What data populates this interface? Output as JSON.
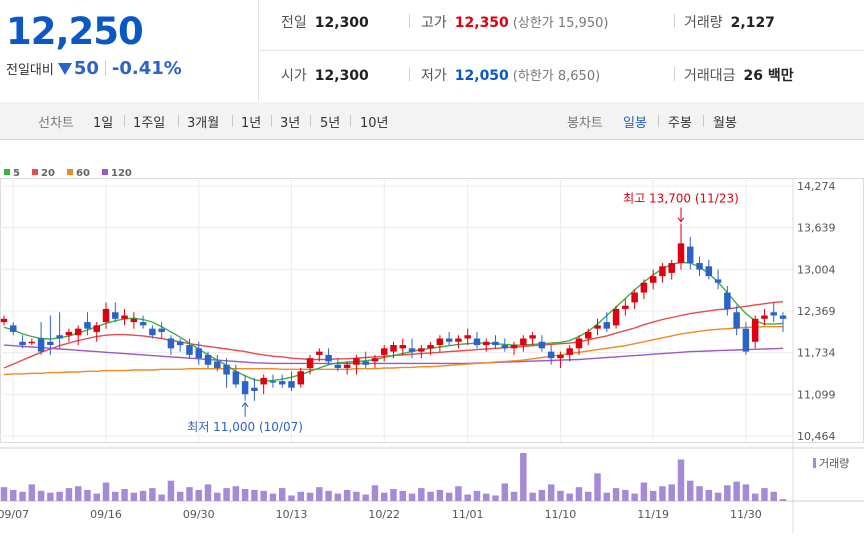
{
  "header": {
    "price": "12,250",
    "change_label": "전일대비",
    "change_value": "50",
    "change_pct": "-0.41%",
    "prev_close_label": "전일",
    "prev_close": "12,300",
    "high_label": "고가",
    "high": "12,350",
    "upper_limit": "(상한가 15,950)",
    "volume_label": "거래량",
    "volume": "2,127",
    "open_label": "시가",
    "open": "12,300",
    "low_label": "저가",
    "low": "12,050",
    "lower_limit": "(하한가 8,650)",
    "amount_label": "거래대금",
    "amount": "26 백만"
  },
  "period_tabs": {
    "label": "선차트",
    "items": [
      "1일",
      "1주일",
      "3개월",
      "1년",
      "3년",
      "5년",
      "10년"
    ]
  },
  "candle_tabs": {
    "label": "봉차트",
    "items": [
      "일봉",
      "주봉",
      "월봉"
    ],
    "active": "일봉"
  },
  "colors": {
    "up": "#e0000f",
    "down": "#2c63c9",
    "ma5": "#3cb043",
    "ma20": "#e74b4b",
    "ma60": "#f08a24",
    "ma120": "#9b59c7",
    "volume": "#a58bd6"
  },
  "chart_data": {
    "type": "candlestick",
    "legend": [
      {
        "label": "5",
        "color": "#3cb043"
      },
      {
        "label": "20",
        "color": "#e74b4b"
      },
      {
        "label": "60",
        "color": "#f08a24"
      },
      {
        "label": "120",
        "color": "#9b59c7"
      }
    ],
    "y_ticks": [
      "14,274",
      "13,639",
      "13,004",
      "12,369",
      "11,734",
      "11,099",
      "10,464"
    ],
    "ylim": [
      10464,
      14274
    ],
    "x_tick_labels": [
      "09/07",
      "09/16",
      "09/30",
      "10/13",
      "10/22",
      "11/01",
      "11/10",
      "11/19",
      "11/30"
    ],
    "x_tick_index": [
      1,
      11,
      21,
      31,
      41,
      50,
      60,
      70,
      80
    ],
    "annotation_high": "최고 13,700 (11/23)",
    "annotation_low": "최저 11,000 (10/07)",
    "high_index": 73,
    "low_index": 26,
    "volume_label": "거래량",
    "candles": [
      [
        12200,
        12300,
        12150,
        12250
      ],
      [
        12150,
        12200,
        12000,
        12050
      ],
      [
        11900,
        12000,
        11800,
        11850
      ],
      [
        11900,
        11950,
        11850,
        11900
      ],
      [
        11950,
        12200,
        11700,
        11750
      ],
      [
        11900,
        12300,
        11700,
        11850
      ],
      [
        12000,
        12350,
        11800,
        11950
      ],
      [
        12000,
        12100,
        11900,
        12050
      ],
      [
        12000,
        12150,
        11850,
        12100
      ],
      [
        12200,
        12350,
        12000,
        12100
      ],
      [
        12050,
        12200,
        11900,
        12150
      ],
      [
        12200,
        12500,
        12100,
        12400
      ],
      [
        12350,
        12500,
        12200,
        12250
      ],
      [
        12250,
        12400,
        12150,
        12300
      ],
      [
        12200,
        12350,
        12100,
        12250
      ],
      [
        12200,
        12300,
        12100,
        12150
      ],
      [
        12100,
        12150,
        11950,
        12000
      ],
      [
        12100,
        12200,
        11950,
        12050
      ],
      [
        11950,
        12000,
        11700,
        11800
      ],
      [
        11900,
        11950,
        11750,
        11850
      ],
      [
        11850,
        11950,
        11650,
        11700
      ],
      [
        11800,
        11900,
        11550,
        11650
      ],
      [
        11700,
        11750,
        11500,
        11550
      ],
      [
        11600,
        11700,
        11450,
        11500
      ],
      [
        11550,
        11650,
        11200,
        11400
      ],
      [
        11450,
        11550,
        11200,
        11250
      ],
      [
        11300,
        11400,
        11000,
        11100
      ],
      [
        11200,
        11350,
        11000,
        11150
      ],
      [
        11250,
        11400,
        11100,
        11350
      ],
      [
        11300,
        11400,
        11200,
        11280
      ],
      [
        11300,
        11400,
        11200,
        11250
      ],
      [
        11300,
        11450,
        11150,
        11200
      ],
      [
        11250,
        11500,
        11200,
        11450
      ],
      [
        11500,
        11700,
        11400,
        11650
      ],
      [
        11700,
        11800,
        11600,
        11750
      ],
      [
        11700,
        11800,
        11550,
        11600
      ],
      [
        11550,
        11650,
        11450,
        11500
      ],
      [
        11500,
        11600,
        11400,
        11550
      ],
      [
        11550,
        11700,
        11400,
        11650
      ],
      [
        11600,
        11750,
        11500,
        11550
      ],
      [
        11600,
        11700,
        11500,
        11650
      ],
      [
        11700,
        11850,
        11600,
        11800
      ],
      [
        11750,
        11900,
        11650,
        11850
      ],
      [
        11800,
        11950,
        11700,
        11850
      ],
      [
        11800,
        11950,
        11650,
        11750
      ],
      [
        11750,
        11850,
        11650,
        11800
      ],
      [
        11800,
        11900,
        11700,
        11850
      ],
      [
        11850,
        12000,
        11750,
        11950
      ],
      [
        11950,
        12050,
        11850,
        11900
      ],
      [
        11900,
        12000,
        11800,
        11950
      ],
      [
        11950,
        12100,
        11850,
        12000
      ],
      [
        11950,
        12050,
        11800,
        11850
      ],
      [
        11850,
        11950,
        11750,
        11900
      ],
      [
        11900,
        12000,
        11800,
        11850
      ],
      [
        11850,
        11950,
        11750,
        11800
      ],
      [
        11800,
        11900,
        11700,
        11850
      ],
      [
        11850,
        12000,
        11750,
        11950
      ],
      [
        11950,
        12050,
        11850,
        12000
      ],
      [
        11900,
        12000,
        11750,
        11800
      ],
      [
        11750,
        11850,
        11550,
        11650
      ],
      [
        11650,
        11750,
        11500,
        11700
      ],
      [
        11700,
        11850,
        11600,
        11800
      ],
      [
        11800,
        12000,
        11700,
        11950
      ],
      [
        11950,
        12100,
        11850,
        12050
      ],
      [
        12100,
        12250,
        12000,
        12150
      ],
      [
        12200,
        12350,
        12050,
        12100
      ],
      [
        12150,
        12450,
        12100,
        12400
      ],
      [
        12400,
        12550,
        12300,
        12450
      ],
      [
        12500,
        12700,
        12400,
        12650
      ],
      [
        12650,
        12850,
        12550,
        12800
      ],
      [
        12800,
        13000,
        12700,
        12900
      ],
      [
        12900,
        13100,
        12800,
        13050
      ],
      [
        12950,
        13150,
        12850,
        13100
      ],
      [
        13100,
        13700,
        13000,
        13400
      ],
      [
        13350,
        13500,
        13000,
        13100
      ],
      [
        13100,
        13200,
        12900,
        13000
      ],
      [
        13050,
        13150,
        12850,
        12900
      ],
      [
        12850,
        13000,
        12700,
        12800
      ],
      [
        12650,
        12750,
        12300,
        12400
      ],
      [
        12350,
        12450,
        12000,
        12100
      ],
      [
        12100,
        12200,
        11700,
        11750
      ],
      [
        11900,
        12300,
        11800,
        12250
      ],
      [
        12250,
        12400,
        12150,
        12300
      ],
      [
        12350,
        12500,
        12200,
        12300
      ],
      [
        12300,
        12350,
        12050,
        12250
      ]
    ],
    "ma5": [
      12120,
      12080,
      12020,
      11980,
      11950,
      11940,
      11960,
      11990,
      12030,
      12080,
      12130,
      12180,
      12220,
      12250,
      12260,
      12240,
      12200,
      12130,
      12050,
      11970,
      11880,
      11790,
      11700,
      11620,
      11540,
      11450,
      11380,
      11320,
      11300,
      11310,
      11330,
      11360,
      11400,
      11450,
      11500,
      11550,
      11580,
      11590,
      11600,
      11610,
      11630,
      11660,
      11690,
      11720,
      11750,
      11780,
      11800,
      11820,
      11840,
      11860,
      11870,
      11880,
      11880,
      11870,
      11860,
      11850,
      11850,
      11860,
      11870,
      11880,
      11890,
      11920,
      11980,
      12060,
      12170,
      12300,
      12430,
      12560,
      12690,
      12810,
      12920,
      13010,
      13080,
      13110,
      13100,
      13040,
      12940,
      12810,
      12650,
      12480,
      12330,
      12220,
      12170,
      12170,
      12180
    ],
    "ma20": [
      11500,
      11560,
      11620,
      11680,
      11740,
      11790,
      11840,
      11880,
      11920,
      11950,
      11980,
      12000,
      12010,
      12010,
      12000,
      11990,
      11970,
      11950,
      11920,
      11900,
      11870,
      11850,
      11830,
      11810,
      11790,
      11770,
      11750,
      11720,
      11700,
      11680,
      11670,
      11650,
      11640,
      11630,
      11630,
      11630,
      11640,
      11640,
      11650,
      11660,
      11670,
      11680,
      11690,
      11700,
      11710,
      11720,
      11730,
      11740,
      11750,
      11760,
      11770,
      11780,
      11790,
      11800,
      11810,
      11820,
      11830,
      11840,
      11850,
      11860,
      11870,
      11880,
      11900,
      11930,
      11960,
      11990,
      12030,
      12070,
      12110,
      12160,
      12200,
      12240,
      12270,
      12300,
      12330,
      12350,
      12370,
      12390,
      12400,
      12420,
      12440,
      12460,
      12480,
      12500,
      12510
    ],
    "ma60": [
      11400,
      11410,
      11410,
      11420,
      11420,
      11430,
      11430,
      11440,
      11440,
      11450,
      11450,
      11460,
      11460,
      11460,
      11470,
      11470,
      11470,
      11480,
      11480,
      11480,
      11490,
      11490,
      11490,
      11490,
      11490,
      11490,
      11490,
      11490,
      11490,
      11490,
      11480,
      11480,
      11480,
      11480,
      11480,
      11480,
      11480,
      11480,
      11490,
      11490,
      11490,
      11500,
      11500,
      11510,
      11510,
      11520,
      11520,
      11530,
      11540,
      11550,
      11560,
      11570,
      11580,
      11590,
      11600,
      11610,
      11620,
      11640,
      11660,
      11680,
      11700,
      11720,
      11740,
      11760,
      11780,
      11800,
      11820,
      11840,
      11870,
      11900,
      11930,
      11960,
      11990,
      12020,
      12040,
      12060,
      12080,
      12090,
      12100,
      12110,
      12120,
      12120,
      12130,
      12130,
      12130
    ],
    "ma120": [
      11850,
      11840,
      11830,
      11820,
      11810,
      11800,
      11790,
      11780,
      11770,
      11760,
      11750,
      11740,
      11730,
      11720,
      11710,
      11700,
      11690,
      11680,
      11670,
      11660,
      11650,
      11640,
      11630,
      11620,
      11610,
      11600,
      11590,
      11580,
      11575,
      11570,
      11570,
      11570,
      11570,
      11570,
      11570,
      11570,
      11570,
      11570,
      11570,
      11570,
      11570,
      11570,
      11570,
      11570,
      11570,
      11570,
      11570,
      11570,
      11570,
      11570,
      11570,
      11575,
      11580,
      11585,
      11590,
      11595,
      11600,
      11605,
      11610,
      11615,
      11620,
      11625,
      11630,
      11640,
      11650,
      11660,
      11670,
      11680,
      11690,
      11700,
      11710,
      11720,
      11730,
      11740,
      11750,
      11755,
      11760,
      11765,
      11770,
      11775,
      11780,
      11785,
      11790,
      11795,
      11800
    ],
    "volume": [
      15,
      12,
      10,
      18,
      11,
      9,
      10,
      14,
      16,
      12,
      8,
      20,
      10,
      13,
      9,
      11,
      14,
      7,
      22,
      10,
      15,
      12,
      18,
      9,
      14,
      16,
      13,
      12,
      11,
      8,
      14,
      6,
      10,
      9,
      15,
      11,
      8,
      12,
      10,
      7,
      17,
      9,
      13,
      11,
      8,
      14,
      10,
      12,
      9,
      16,
      7,
      11,
      8,
      6,
      19,
      10,
      52,
      9,
      12,
      18,
      11,
      8,
      15,
      10,
      30,
      9,
      14,
      12,
      8,
      20,
      11,
      16,
      18,
      45,
      22,
      16,
      12,
      9,
      17,
      21,
      18,
      8,
      14,
      10,
      2
    ]
  }
}
